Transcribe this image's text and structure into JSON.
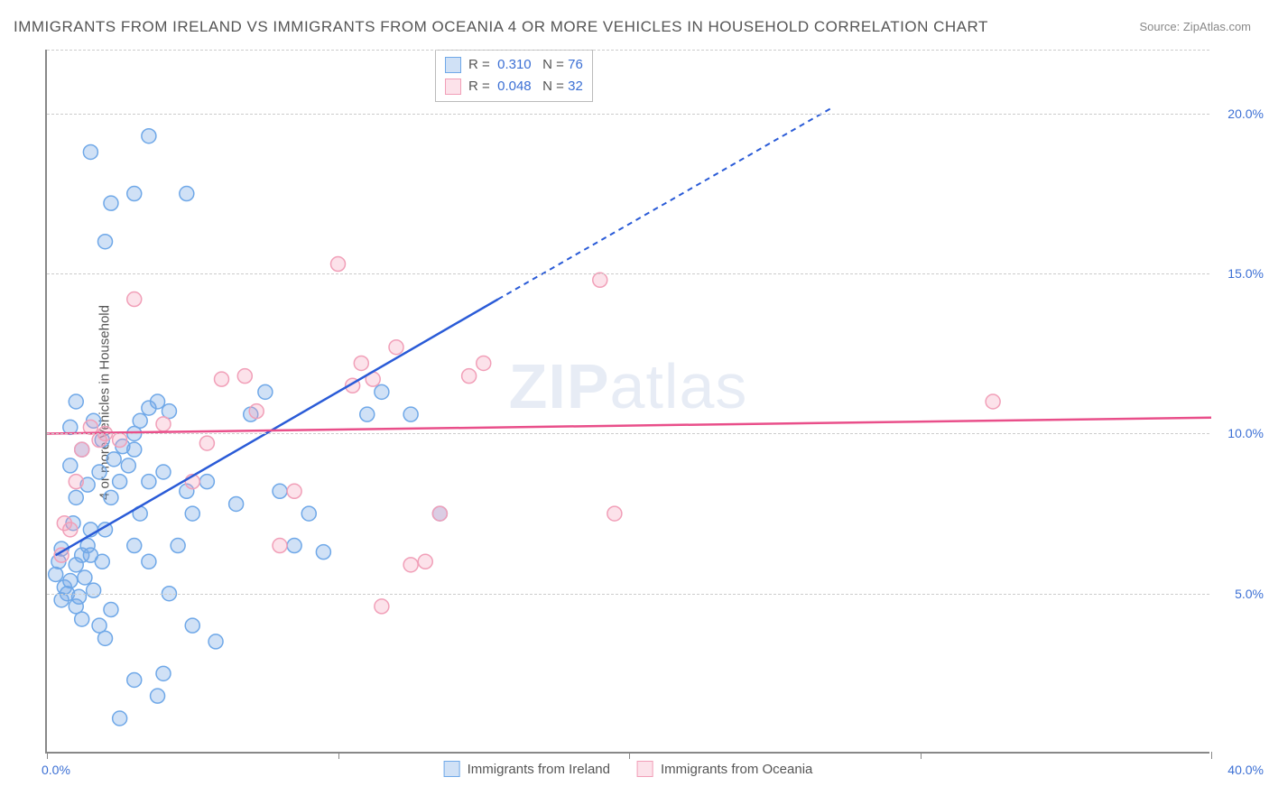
{
  "title": "IMMIGRANTS FROM IRELAND VS IMMIGRANTS FROM OCEANIA 4 OR MORE VEHICLES IN HOUSEHOLD CORRELATION CHART",
  "source": "Source: ZipAtlas.com",
  "watermark_a": "ZIP",
  "watermark_b": "atlas",
  "ylabel": "4 or more Vehicles in Household",
  "chart": {
    "type": "scatter",
    "x_domain": [
      0,
      40
    ],
    "y_domain": [
      0,
      22
    ],
    "y_gridlines": [
      5,
      10,
      15,
      20
    ],
    "y_tick_labels": [
      "5.0%",
      "10.0%",
      "15.0%",
      "20.0%"
    ],
    "x_ticks": [
      0,
      10,
      20,
      30,
      40
    ],
    "x_left_label": "0.0%",
    "x_right_label": "40.0%",
    "grid_color": "#cccccc",
    "axis_color": "#888888",
    "background_color": "#ffffff",
    "marker_radius": 8,
    "series": [
      {
        "name": "Immigrants from Ireland",
        "fill": "rgba(120,170,230,0.35)",
        "stroke": "#6fa8e8",
        "trend_color": "#2a5bd7",
        "trend_solid": {
          "x1": 0.3,
          "y1": 6.2,
          "x2": 15.5,
          "y2": 14.2
        },
        "trend_dash": {
          "x1": 15.5,
          "y1": 14.2,
          "x2": 27,
          "y2": 20.2
        },
        "r_value": "0.310",
        "n_value": "76",
        "points": [
          [
            0.3,
            5.6
          ],
          [
            0.4,
            6.0
          ],
          [
            0.5,
            6.4
          ],
          [
            0.6,
            5.2
          ],
          [
            0.7,
            5.0
          ],
          [
            0.8,
            5.4
          ],
          [
            0.5,
            4.8
          ],
          [
            1.0,
            4.6
          ],
          [
            1.2,
            6.2
          ],
          [
            1.4,
            6.5
          ],
          [
            1.5,
            7.0
          ],
          [
            0.9,
            7.2
          ],
          [
            1.1,
            4.9
          ],
          [
            1.0,
            5.9
          ],
          [
            1.3,
            5.5
          ],
          [
            1.6,
            5.1
          ],
          [
            1.2,
            4.2
          ],
          [
            1.8,
            4.0
          ],
          [
            2.0,
            3.6
          ],
          [
            2.2,
            4.5
          ],
          [
            1.9,
            6.0
          ],
          [
            1.0,
            8.0
          ],
          [
            1.4,
            8.4
          ],
          [
            1.8,
            8.8
          ],
          [
            2.2,
            8.0
          ],
          [
            2.5,
            8.5
          ],
          [
            2.3,
            9.2
          ],
          [
            2.8,
            9.0
          ],
          [
            2.6,
            9.6
          ],
          [
            3.0,
            10.0
          ],
          [
            3.2,
            10.4
          ],
          [
            3.0,
            9.5
          ],
          [
            1.9,
            9.8
          ],
          [
            1.6,
            10.4
          ],
          [
            0.8,
            10.2
          ],
          [
            1.2,
            9.5
          ],
          [
            3.5,
            10.8
          ],
          [
            3.8,
            11.0
          ],
          [
            3.5,
            8.5
          ],
          [
            4.0,
            8.8
          ],
          [
            4.2,
            10.7
          ],
          [
            3.2,
            7.5
          ],
          [
            3.0,
            6.5
          ],
          [
            3.5,
            6.0
          ],
          [
            4.5,
            6.5
          ],
          [
            5.0,
            7.5
          ],
          [
            4.8,
            8.2
          ],
          [
            5.5,
            8.5
          ],
          [
            5.8,
            3.5
          ],
          [
            4.0,
            2.5
          ],
          [
            3.8,
            1.8
          ],
          [
            3.0,
            2.3
          ],
          [
            2.5,
            1.1
          ],
          [
            5.0,
            4.0
          ],
          [
            4.2,
            5.0
          ],
          [
            6.5,
            7.8
          ],
          [
            7.0,
            10.6
          ],
          [
            7.5,
            11.3
          ],
          [
            8.0,
            8.2
          ],
          [
            8.5,
            6.5
          ],
          [
            9.0,
            7.5
          ],
          [
            9.5,
            6.3
          ],
          [
            11.0,
            10.6
          ],
          [
            11.5,
            11.3
          ],
          [
            12.5,
            10.6
          ],
          [
            13.5,
            7.5
          ],
          [
            2.0,
            16.0
          ],
          [
            2.2,
            17.2
          ],
          [
            4.8,
            17.5
          ],
          [
            3.0,
            17.5
          ],
          [
            3.5,
            19.3
          ],
          [
            1.5,
            18.8
          ],
          [
            1.0,
            11.0
          ],
          [
            0.8,
            9.0
          ],
          [
            2.0,
            7.0
          ],
          [
            1.5,
            6.2
          ]
        ]
      },
      {
        "name": "Immigrants from Oceania",
        "fill": "rgba(245,160,185,0.3)",
        "stroke": "#f19fb8",
        "trend_color": "#e94f8a",
        "trend_solid": {
          "x1": 0,
          "y1": 10.0,
          "x2": 40,
          "y2": 10.5
        },
        "trend_dash": null,
        "r_value": "0.048",
        "n_value": "32",
        "points": [
          [
            0.5,
            6.2
          ],
          [
            0.8,
            7.0
          ],
          [
            1.0,
            8.5
          ],
          [
            1.2,
            9.5
          ],
          [
            1.5,
            10.2
          ],
          [
            1.8,
            9.8
          ],
          [
            2.0,
            10.0
          ],
          [
            2.5,
            9.8
          ],
          [
            3.0,
            14.2
          ],
          [
            4.0,
            10.3
          ],
          [
            5.0,
            8.5
          ],
          [
            5.5,
            9.7
          ],
          [
            6.0,
            11.7
          ],
          [
            6.8,
            11.8
          ],
          [
            7.2,
            10.7
          ],
          [
            8.0,
            6.5
          ],
          [
            8.5,
            8.2
          ],
          [
            10.0,
            15.3
          ],
          [
            10.5,
            11.5
          ],
          [
            10.8,
            12.2
          ],
          [
            11.2,
            11.7
          ],
          [
            12.5,
            5.9
          ],
          [
            13.0,
            6.0
          ],
          [
            12.0,
            12.7
          ],
          [
            13.5,
            7.5
          ],
          [
            14.5,
            11.8
          ],
          [
            15.0,
            12.2
          ],
          [
            11.5,
            4.6
          ],
          [
            19.0,
            14.8
          ],
          [
            19.5,
            7.5
          ],
          [
            32.5,
            11.0
          ],
          [
            0.6,
            7.2
          ]
        ]
      }
    ]
  },
  "legend": {
    "r_label": "R =",
    "n_label": "N ="
  },
  "bottom_legend": {
    "item1": "Immigrants from Ireland",
    "item2": "Immigrants from Oceania"
  }
}
